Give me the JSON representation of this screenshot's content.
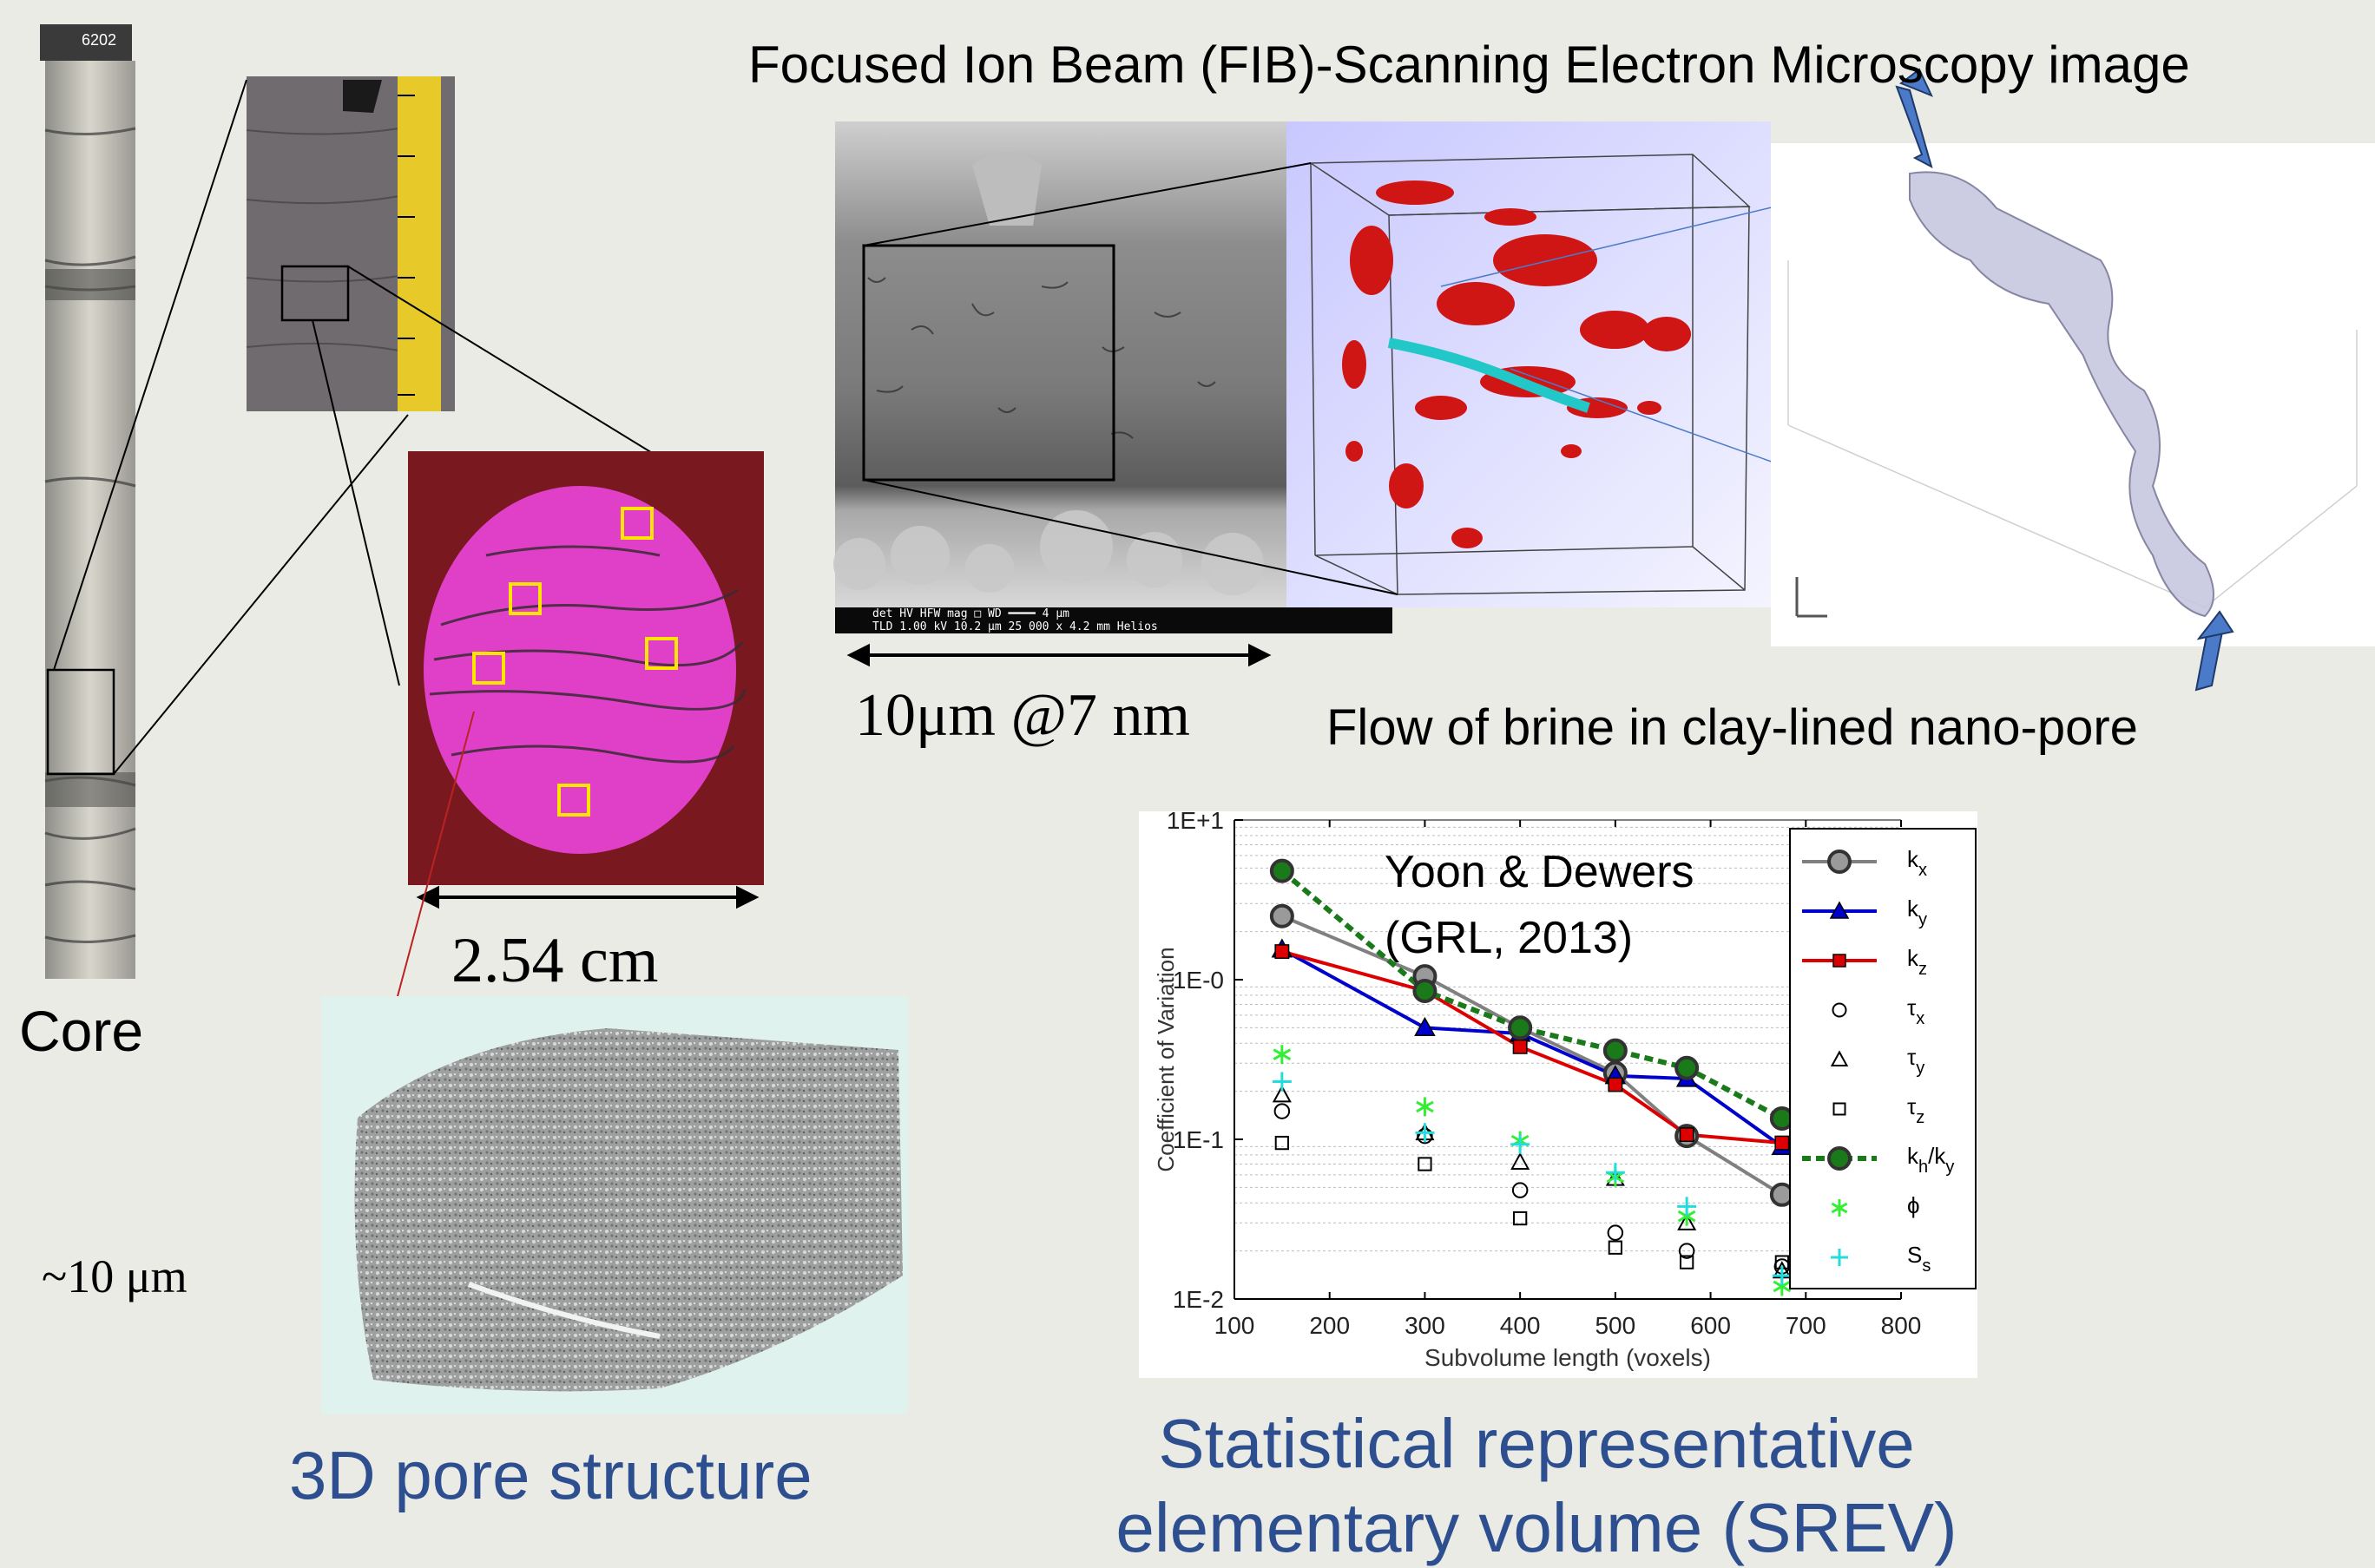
{
  "labels": {
    "core": "Core",
    "core_tag": "6202",
    "plug_scale": "2.54 cm",
    "pore_scale": "~10 μm",
    "pore_structure": "3D pore structure",
    "fib_title": "Focused Ion Beam (FIB)-Scanning Electron Microscopy image",
    "fib_scale": "10μm @7 nm",
    "flow": "Flow of brine in clay-lined nano-pore",
    "srev_line1": "Statistical representative",
    "srev_line2": "elementary volume (SREV)",
    "sem_bar": "det   HV    HFW   mag □  WD       ━━━━ 4 μm",
    "sem_bar2": "TLD 1.00 kV 10.2 μm 25 000 x 4.2 mm      Helios"
  },
  "colors": {
    "srev_text": "#2e4f8f",
    "kx": "#808080",
    "ky": "#0000cc",
    "kz": "#dd0000",
    "khky": "#1a7a1a",
    "phi": "#33ee33",
    "ss": "#22dddd",
    "pore_red": "#cc1111",
    "plug_magenta": "#e040c8"
  },
  "chart_data": {
    "type": "scatter",
    "title": "",
    "annotation_line1": "Yoon & Dewers",
    "annotation_line2": "(GRL, 2013)",
    "xlabel": "Subvolume length (voxels)",
    "ylabel": "Coefficient of Variation",
    "xlim": [
      100,
      800
    ],
    "ylim": [
      0.01,
      10
    ],
    "yscale": "log",
    "x_ticks": [
      "100",
      "200",
      "300",
      "400",
      "500",
      "600",
      "700",
      "800"
    ],
    "y_ticks": [
      "1E-2",
      "1E-1",
      "1E-0",
      "1E+1"
    ],
    "grid": "horizontal dotted",
    "legend_position": "right",
    "x": [
      150,
      300,
      400,
      500,
      575,
      675
    ],
    "series": [
      {
        "name": "k_x",
        "legend_main": "k",
        "legend_sub": "x",
        "marker": "circle-filled",
        "line": "solid",
        "color_key": "kx",
        "values": [
          2.5,
          1.05,
          0.5,
          0.26,
          0.105,
          0.045
        ]
      },
      {
        "name": "k_y",
        "legend_main": "k",
        "legend_sub": "y",
        "marker": "triangle-filled",
        "line": "solid",
        "color_key": "ky",
        "values": [
          1.55,
          0.5,
          0.46,
          0.25,
          0.24,
          0.09
        ]
      },
      {
        "name": "k_z",
        "legend_main": "k",
        "legend_sub": "z",
        "marker": "square-filled",
        "line": "solid",
        "color_key": "kz",
        "values": [
          1.5,
          0.85,
          0.38,
          0.22,
          0.107,
          0.095
        ]
      },
      {
        "name": "τ_x",
        "legend_main": "τ",
        "legend_sub": "x",
        "marker": "circle-open",
        "line": "none",
        "color_key": "black",
        "values": [
          0.15,
          0.105,
          0.048,
          0.026,
          0.02,
          0.016
        ]
      },
      {
        "name": "τ_y",
        "legend_main": "τ",
        "legend_sub": "y",
        "marker": "triangle-open",
        "line": "none",
        "color_key": "black",
        "values": [
          0.19,
          0.11,
          0.072,
          0.057,
          0.03,
          0.015
        ]
      },
      {
        "name": "τ_z",
        "legend_main": "τ",
        "legend_sub": "z",
        "marker": "square-open",
        "line": "none",
        "color_key": "black",
        "values": [
          0.095,
          0.07,
          0.032,
          0.021,
          0.017,
          0.017
        ]
      },
      {
        "name": "k_h/k_y",
        "legend_main": "k",
        "legend_sub": "h",
        "legend_tail": "/k",
        "legend_sub2": "y",
        "marker": "circle-filled",
        "line": "dashed",
        "color_key": "khky",
        "values": [
          4.8,
          0.85,
          0.5,
          0.36,
          0.28,
          0.135
        ]
      },
      {
        "name": "ϕ",
        "legend_main": "ϕ",
        "legend_sub": "",
        "marker": "asterisk",
        "line": "none",
        "color_key": "phi",
        "values": [
          0.34,
          0.16,
          0.098,
          0.058,
          0.033,
          0.012
        ]
      },
      {
        "name": "S_s",
        "legend_main": "S",
        "legend_sub": "s",
        "marker": "plus",
        "line": "none",
        "color_key": "ss",
        "values": [
          0.23,
          0.11,
          0.093,
          0.062,
          0.038,
          0.014
        ]
      }
    ]
  }
}
